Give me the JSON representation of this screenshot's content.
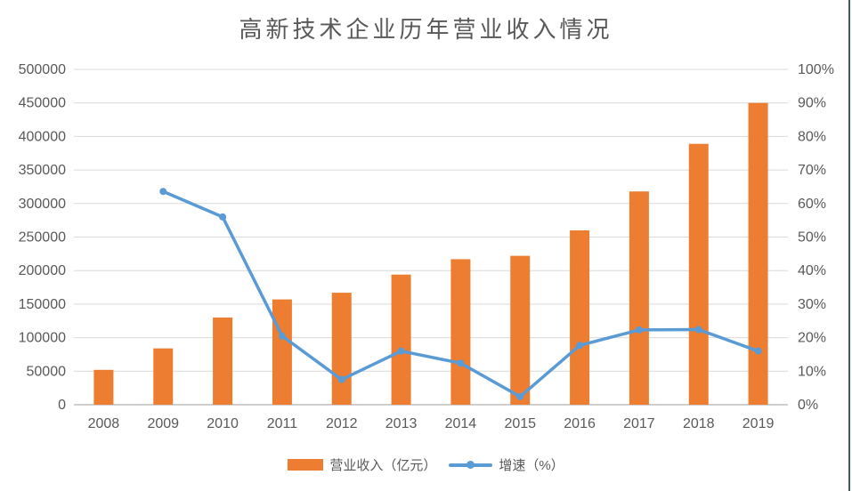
{
  "title": "高新技术企业历年营业收入情况",
  "colors": {
    "bar": "#ED7D31",
    "line": "#5B9BD5",
    "grid": "#D9D9D9",
    "axis_line": "#BFBFBF",
    "text": "#595959",
    "border_right": "#44546A",
    "background": "#FFFFFF"
  },
  "legend": {
    "bar_label": "营业收入（亿元）",
    "line_label": "增速（%）"
  },
  "chart_data": {
    "type": "combo",
    "title": "高新技术企业历年营业收入情况",
    "categories": [
      "2008",
      "2009",
      "2010",
      "2011",
      "2012",
      "2013",
      "2014",
      "2015",
      "2016",
      "2017",
      "2018",
      "2019"
    ],
    "series": [
      {
        "name": "营业收入（亿元）",
        "type": "bar",
        "axis": "left",
        "color": "#ED7D31",
        "values": [
          52000,
          84000,
          130000,
          157000,
          167000,
          194000,
          217000,
          222000,
          260000,
          318000,
          389000,
          450000
        ]
      },
      {
        "name": "增速（%）",
        "type": "line",
        "axis": "right",
        "color": "#5B9BD5",
        "values": [
          null,
          63.6,
          56.0,
          20.5,
          7.5,
          16.0,
          12.4,
          2.4,
          17.7,
          22.3,
          22.4,
          16.0
        ]
      }
    ],
    "left_axis": {
      "min": 0,
      "max": 500000,
      "step": 50000,
      "tick_labels": [
        "0",
        "50000",
        "100000",
        "150000",
        "200000",
        "250000",
        "300000",
        "350000",
        "400000",
        "450000",
        "500000"
      ]
    },
    "right_axis": {
      "min": 0,
      "max": 100,
      "step": 10,
      "tick_labels": [
        "0%",
        "10%",
        "20%",
        "30%",
        "40%",
        "50%",
        "60%",
        "70%",
        "80%",
        "90%",
        "100%"
      ]
    },
    "grid": true,
    "legend_position": "bottom"
  }
}
